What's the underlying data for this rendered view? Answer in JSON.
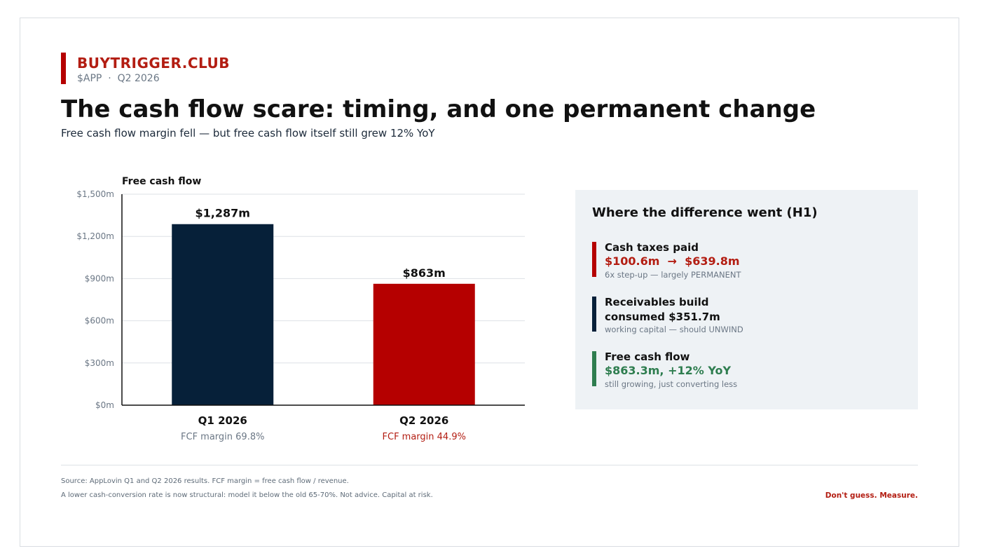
{
  "brand": {
    "name": "BUYTRIGGER.CLUB",
    "ticker": "$APP  ·  Q2 2026"
  },
  "headline": {
    "title": "The cash flow scare: timing, and one permanent change",
    "subtitle": "Free cash flow margin fell — but free cash flow itself still grew 12% YoY"
  },
  "chart_data": {
    "type": "bar",
    "title": "Free cash flow",
    "categories": [
      "Q1 2026",
      "Q2 2026"
    ],
    "values": [
      1287,
      863
    ],
    "value_labels": [
      "$1,287m",
      "$863m"
    ],
    "sublabels": [
      "FCF margin 69.8%",
      "FCF margin 44.9%"
    ],
    "ylim": [
      0,
      1500
    ],
    "yticks": [
      0,
      300,
      600,
      900,
      1200,
      1500
    ],
    "ytick_labels": [
      "$0m",
      "$300m",
      "$600m",
      "$900m",
      "$1,200m",
      "$1,500m"
    ],
    "colors": [
      "#062039",
      "#b50000"
    ],
    "sublabel_colors": [
      "#6b7785",
      "#b31d12"
    ],
    "grid": true
  },
  "panel": {
    "title": "Where the difference went (H1)",
    "items": [
      {
        "label": "Cash taxes paid",
        "value": "$100.6m  →  $639.8m",
        "note": "6x step-up — largely PERMANENT",
        "color": "#b31d12",
        "bar_color": "#b50000"
      },
      {
        "label": "Receivables build consumed $351.7m",
        "value": "",
        "note": "working capital — should UNWIND",
        "color": "#111111",
        "bar_color": "#062039"
      },
      {
        "label": "Free cash flow",
        "value": "$863.3m, +12% YoY",
        "note": "still growing, just converting less",
        "color": "#2e7d4f",
        "bar_color": "#2e7d4f"
      }
    ]
  },
  "footer": {
    "source": "Source: AppLovin Q1 and Q2 2026 results. FCF margin = free cash flow / revenue.",
    "disclaimer": "A lower cash-conversion rate is now structural: model it below the old 65-70%. Not advice. Capital at risk.",
    "tagline": "Don't guess. Measure."
  }
}
